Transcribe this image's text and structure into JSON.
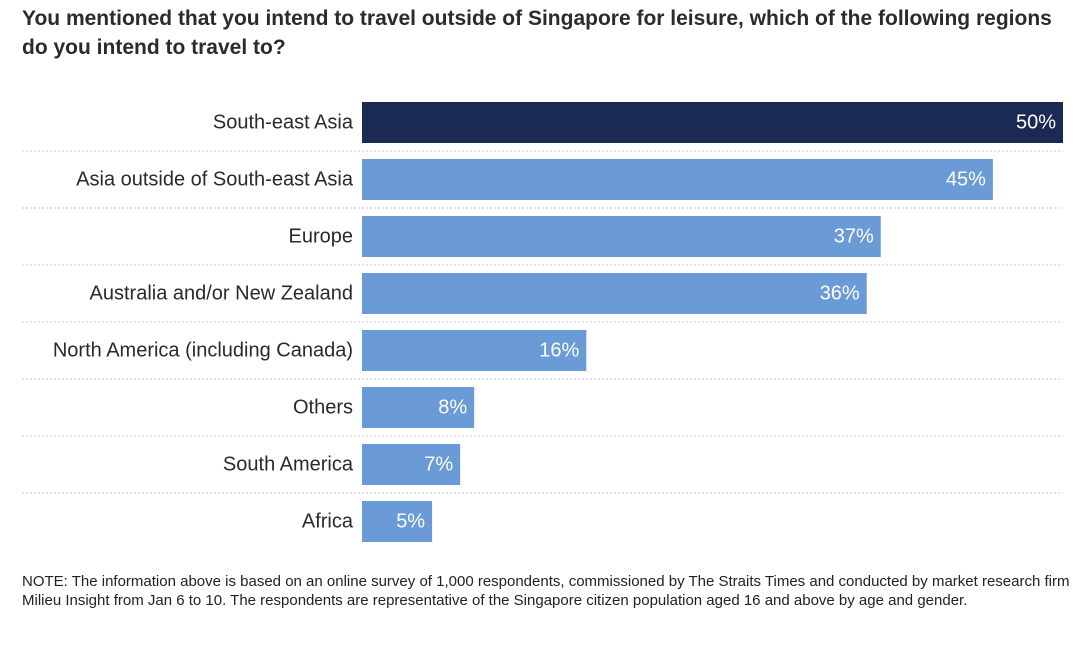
{
  "title": "You mentioned that you intend to travel outside of Singapore for leisure, which of the following regions do you intend to travel to?",
  "note": "NOTE: The information above is based on an online survey of 1,000 respondents, commissioned by The Straits Times and conducted by market research firm Milieu Insight from Jan 6 to 10. The respondents are representative of the Singapore citizen population aged 16 and above by age and gender.",
  "colors": {
    "highlight": "#1b2a55",
    "bar": "#6a9bd6",
    "bar_label": "#ffffff",
    "category_label": "#2a2a2a",
    "divider": "#c9c9c9"
  },
  "chart_data": {
    "type": "bar",
    "orientation": "horizontal",
    "title": "You mentioned that you intend to travel outside of Singapore for leisure, which of the following regions do you intend to travel to?",
    "xlabel": "",
    "ylabel": "",
    "xlim": [
      0,
      50
    ],
    "grid": false,
    "legend": "none",
    "categories": [
      "South-east Asia",
      "Asia outside of South-east Asia",
      "Europe",
      "Australia and/or New Zealand",
      "North America (including Canada)",
      "Others",
      "South America",
      "Africa"
    ],
    "values": [
      50,
      45,
      37,
      36,
      16,
      8,
      7,
      5
    ],
    "value_labels": [
      "50%",
      "45%",
      "37%",
      "36%",
      "16%",
      "8%",
      "7%",
      "5%"
    ],
    "highlighted": [
      true,
      false,
      false,
      false,
      false,
      false,
      false,
      false
    ]
  }
}
